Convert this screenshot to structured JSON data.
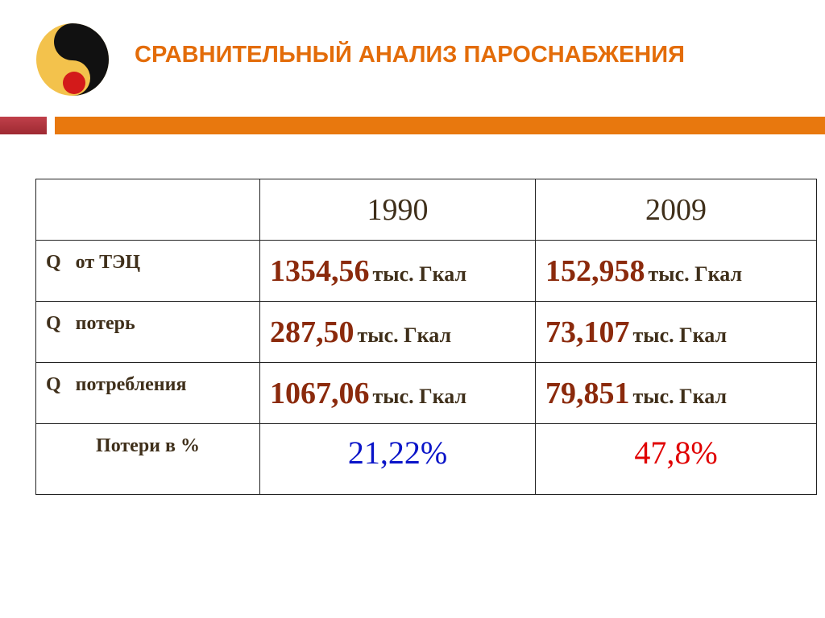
{
  "header": {
    "title": "СРАВНИТЕЛЬНЫЙ АНАЛИЗ ПАРОСНАБЖЕНИЯ"
  },
  "table": {
    "columns": [
      "1990",
      "2009"
    ],
    "rows": [
      {
        "label": "Q   от ТЭЦ",
        "cells": [
          {
            "value": "1354,56",
            "unit": "тыс. Гкал"
          },
          {
            "value": "152,958",
            "unit": "тыс. Гкал"
          }
        ]
      },
      {
        "label": "Q   потерь",
        "cells": [
          {
            "value": "287,50",
            "unit": "тыс. Гкал"
          },
          {
            "value": "73,107",
            "unit": "тыс. Гкал"
          }
        ]
      },
      {
        "label": "Q   потребления",
        "cells": [
          {
            "value": "1067,06",
            "unit": "тыс. Гкал"
          },
          {
            "value": "79,851",
            "unit": "тыс. Гкал"
          }
        ]
      },
      {
        "label": "Потери в %",
        "cells": [
          {
            "value": "21,22%"
          },
          {
            "value": "47,8%"
          }
        ]
      }
    ]
  }
}
